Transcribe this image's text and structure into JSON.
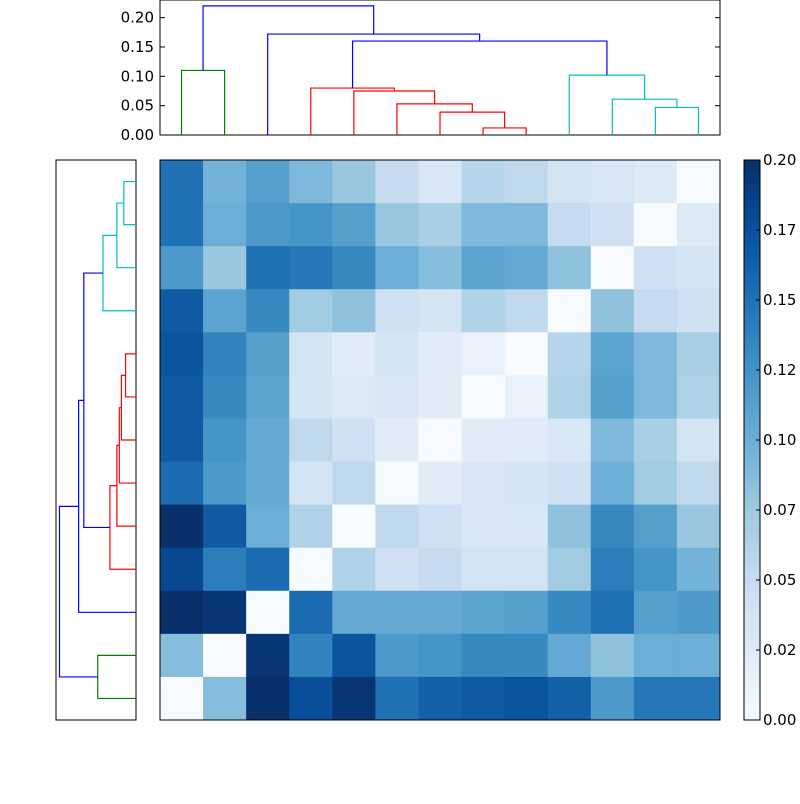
{
  "chart_data": [
    {
      "type": "dendrogram",
      "orientation": "top",
      "ylim": [
        0,
        0.23
      ],
      "yticks": [
        "0.00",
        "0.05",
        "0.10",
        "0.15",
        "0.20"
      ],
      "colors": {
        "green": "#008000",
        "blue": "#0000ff",
        "red": "#ff0000",
        "cyan": "#00bfbf"
      },
      "links": [
        {
          "left": 0.5,
          "right": 1.5,
          "height": 0.11,
          "color": "green"
        },
        {
          "left": 7.5,
          "right": 8.5,
          "height": 0.012,
          "color": "red"
        },
        {
          "left": 6.5,
          "right": 8.0,
          "height": 0.039,
          "color": "red"
        },
        {
          "left": 5.5,
          "right": 7.25,
          "height": 0.053,
          "color": "red"
        },
        {
          "left": 4.5,
          "right": 6.375,
          "height": 0.075,
          "color": "red"
        },
        {
          "left": 3.5,
          "right": 5.4375,
          "height": 0.08,
          "color": "red"
        },
        {
          "left": 11.5,
          "right": 12.5,
          "height": 0.047,
          "color": "cyan"
        },
        {
          "left": 10.5,
          "right": 12.0,
          "height": 0.061,
          "color": "cyan"
        },
        {
          "left": 9.5,
          "right": 11.25,
          "height": 0.102,
          "color": "cyan"
        },
        {
          "left": 4.47,
          "right": 10.375,
          "height": 0.16,
          "color": "blue"
        },
        {
          "left": 2.5,
          "right": 7.42,
          "height": 0.172,
          "color": "blue"
        },
        {
          "left": 1.0,
          "right": 4.96,
          "height": 0.22,
          "color": "blue"
        }
      ]
    },
    {
      "type": "dendrogram",
      "orientation": "left",
      "colors": {
        "green": "#008000",
        "blue": "#0000ff",
        "red": "#ff0000",
        "cyan": "#00bfbf"
      },
      "links": [
        {
          "top": 0.5,
          "bottom": 1.5,
          "height": 0.035,
          "color": "cyan"
        },
        {
          "top": 1.0,
          "bottom": 2.5,
          "height": 0.055,
          "color": "cyan"
        },
        {
          "top": 1.75,
          "bottom": 3.5,
          "height": 0.095,
          "color": "cyan"
        },
        {
          "top": 4.5,
          "bottom": 5.5,
          "height": 0.03,
          "color": "red"
        },
        {
          "top": 5.0,
          "bottom": 6.5,
          "height": 0.042,
          "color": "red"
        },
        {
          "top": 5.75,
          "bottom": 7.5,
          "height": 0.048,
          "color": "red"
        },
        {
          "top": 6.625,
          "bottom": 8.5,
          "height": 0.055,
          "color": "red"
        },
        {
          "top": 7.56,
          "bottom": 9.5,
          "height": 0.075,
          "color": "red"
        },
        {
          "top": 2.625,
          "bottom": 8.53,
          "height": 0.15,
          "color": "blue"
        },
        {
          "top": 11.5,
          "bottom": 12.5,
          "height": 0.11,
          "color": "green"
        },
        {
          "top": 5.58,
          "bottom": 10.5,
          "height": 0.165,
          "color": "blue"
        },
        {
          "top": 8.04,
          "bottom": 12.0,
          "height": 0.22,
          "color": "blue"
        }
      ]
    },
    {
      "type": "heatmap",
      "vmin": 0.0,
      "vmax": 0.22,
      "cmap": "Blues",
      "rows": 13,
      "cols": 13,
      "matrix": [
        [
          0.165,
          0.105,
          0.125,
          0.1,
          0.085,
          0.055,
          0.035,
          0.065,
          0.06,
          0.04,
          0.035,
          0.03,
          0.0
        ],
        [
          0.165,
          0.11,
          0.13,
          0.135,
          0.125,
          0.085,
          0.075,
          0.1,
          0.1,
          0.055,
          0.045,
          0.0,
          0.03
        ],
        [
          0.13,
          0.085,
          0.165,
          0.16,
          0.145,
          0.11,
          0.095,
          0.12,
          0.115,
          0.09,
          0.0,
          0.045,
          0.04
        ],
        [
          0.185,
          0.12,
          0.145,
          0.08,
          0.09,
          0.045,
          0.04,
          0.07,
          0.06,
          0.0,
          0.09,
          0.055,
          0.045
        ],
        [
          0.19,
          0.15,
          0.125,
          0.04,
          0.025,
          0.04,
          0.025,
          0.015,
          0.0,
          0.065,
          0.12,
          0.1,
          0.075
        ],
        [
          0.185,
          0.145,
          0.12,
          0.04,
          0.03,
          0.035,
          0.025,
          0.0,
          0.015,
          0.07,
          0.125,
          0.1,
          0.07
        ],
        [
          0.185,
          0.135,
          0.115,
          0.06,
          0.045,
          0.025,
          0.0,
          0.025,
          0.025,
          0.035,
          0.1,
          0.075,
          0.04
        ],
        [
          0.17,
          0.13,
          0.115,
          0.04,
          0.06,
          0.0,
          0.025,
          0.035,
          0.04,
          0.045,
          0.11,
          0.08,
          0.06
        ],
        [
          0.22,
          0.185,
          0.11,
          0.07,
          0.0,
          0.06,
          0.045,
          0.035,
          0.035,
          0.09,
          0.145,
          0.125,
          0.085
        ],
        [
          0.2,
          0.155,
          0.17,
          0.0,
          0.07,
          0.045,
          0.055,
          0.04,
          0.04,
          0.08,
          0.155,
          0.135,
          0.105
        ],
        [
          0.225,
          0.215,
          0.0,
          0.17,
          0.115,
          0.115,
          0.115,
          0.12,
          0.125,
          0.145,
          0.165,
          0.125,
          0.13
        ],
        [
          0.095,
          0.0,
          0.215,
          0.15,
          0.19,
          0.13,
          0.135,
          0.145,
          0.145,
          0.115,
          0.09,
          0.11,
          0.11
        ],
        [
          0.0,
          0.095,
          0.225,
          0.195,
          0.215,
          0.165,
          0.18,
          0.185,
          0.19,
          0.18,
          0.13,
          0.16,
          0.16
        ]
      ]
    },
    {
      "type": "colorbar",
      "vmin": 0.0,
      "vmax": 0.22,
      "ticks": [
        "0.00",
        "0.02",
        "0.05",
        "0.07",
        "0.10",
        "0.12",
        "0.15",
        "0.17",
        "0.20"
      ]
    }
  ]
}
